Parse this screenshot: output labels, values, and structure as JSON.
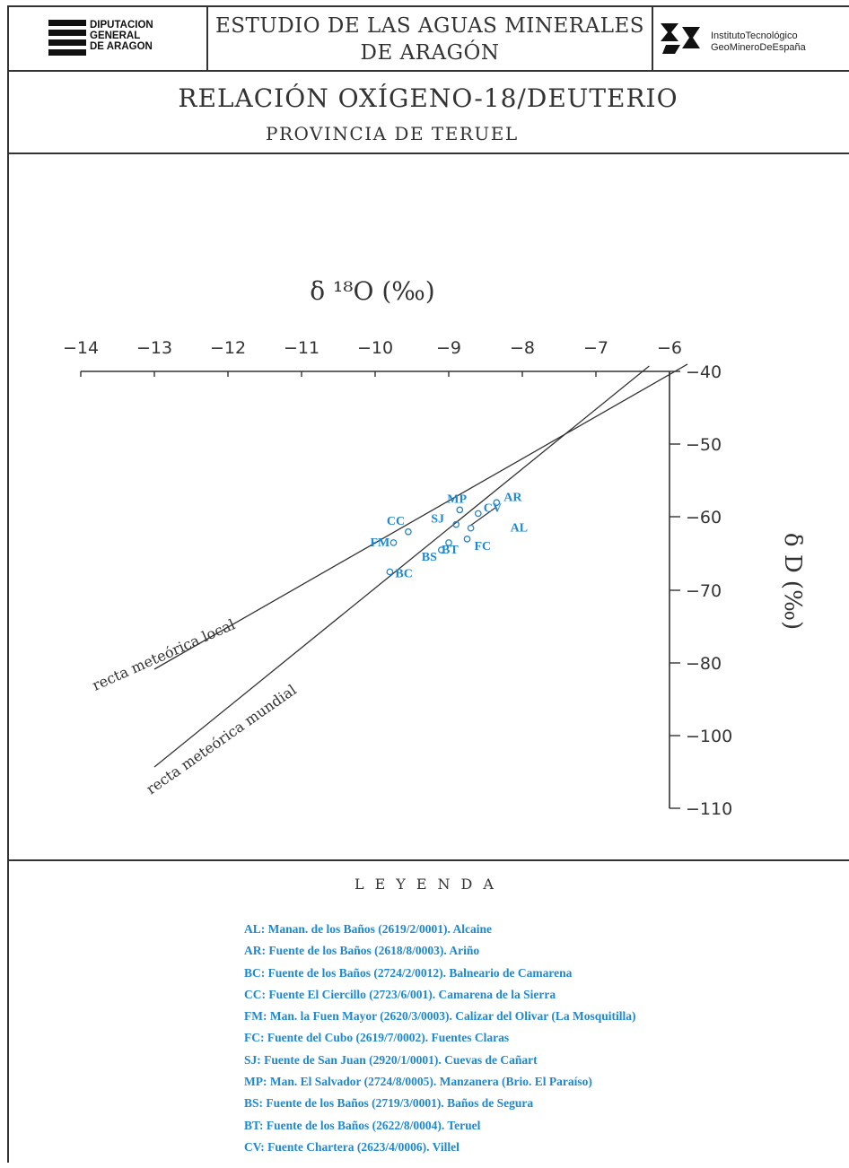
{
  "header": {
    "left_logo_lines": [
      "DIPUTACION",
      "GENERAL",
      "DE ARAGON"
    ],
    "title_line1": "ESTUDIO DE LAS AGUAS MINERALES",
    "title_line2": "DE ARAGÓN",
    "right_logo_lines": [
      "InstitutoTecnológico",
      "GeoMineroDeEspaña"
    ]
  },
  "title": "RELACIÓN OXÍGENO-18/DEUTERIO",
  "subtitle": "PROVINCIA DE TERUEL",
  "colors": {
    "points": "#1e88d0",
    "lines": "#333333"
  },
  "chart_data": {
    "type": "scatter",
    "x_axis": {
      "label": "δ ¹⁸O (‰)",
      "ticks": [
        -14,
        -13,
        -12,
        -11,
        -10,
        -9,
        -8,
        -7,
        -6
      ],
      "position": "top"
    },
    "y_axis": {
      "label": "δ D (‰)",
      "tick_labels": [
        "-40",
        "-50",
        "-60",
        "-70",
        "-80",
        "-100",
        "-110"
      ],
      "position": "right"
    },
    "lines": [
      {
        "label": "recta meteórica local",
        "x_range": [
          -13,
          -6
        ]
      },
      {
        "label": "recta meteórica mundial",
        "x_range": [
          -13,
          -6.3
        ]
      }
    ],
    "points": [
      {
        "label": "MP",
        "x": -8.85,
        "y": -59
      },
      {
        "label": "AR",
        "x": -8.35,
        "y": -58
      },
      {
        "label": "CV",
        "x": -8.6,
        "y": -59.5
      },
      {
        "label": "SJ",
        "x": -8.9,
        "y": -61
      },
      {
        "label": "AL",
        "x": -8.7,
        "y": -61.5
      },
      {
        "label": "CC",
        "x": -9.55,
        "y": -62
      },
      {
        "label": "FC",
        "x": -8.75,
        "y": -63
      },
      {
        "label": "BT",
        "x": -9.0,
        "y": -63.5
      },
      {
        "label": "FM",
        "x": -9.75,
        "y": -63.5
      },
      {
        "label": "BS",
        "x": -9.1,
        "y": -64.5
      },
      {
        "label": "BC",
        "x": -9.8,
        "y": -67.5
      }
    ],
    "legend_title": "LEYENDA"
  },
  "legend": [
    "AL: Manan. de los Baños (2619/2/0001). Alcaine",
    "AR: Fuente de los Baños (2618/8/0003). Ariño",
    "BC: Fuente de los Baños (2724/2/0012). Balneario de Camarena",
    "CC: Fuente El Ciercillo (2723/6/001). Camarena de la Sierra",
    "FM: Man. la Fuen Mayor (2620/3/0003). Calizar del Olivar (La Mosquitilla)",
    "FC: Fuente del Cubo (2619/7/0002). Fuentes Claras",
    "SJ: Fuente de San Juan (2920/1/0001). Cuevas de Cañart",
    "MP: Man. El Salvador (2724/8/0005). Manzanera (Brio. El Paraíso)",
    "BS: Fuente de los Baños (2719/3/0001). Baños de Segura",
    "BT: Fuente de los Baños (2622/8/0004). Teruel",
    "CV: Fuente Chartera (2623/4/0006). Villel"
  ]
}
